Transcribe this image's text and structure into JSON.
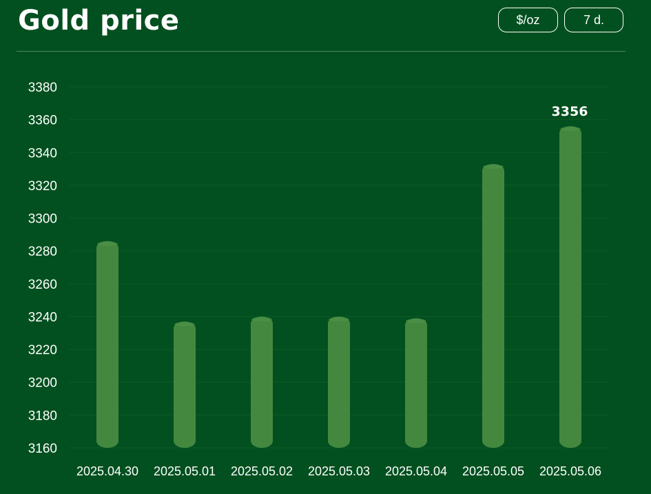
{
  "header": {
    "title": "Gold price",
    "unit_button": "$/oz",
    "range_button": "7 d."
  },
  "colors": {
    "background": "#02501f",
    "bar": "#448840",
    "bar_top": "#4f9449",
    "grid": "#0c5c26",
    "text": "#ffffff"
  },
  "chart_data": {
    "type": "bar",
    "categories": [
      "2025.04.30",
      "2025.05.01",
      "2025.05.02",
      "2025.05.03",
      "2025.05.04",
      "2025.05.05",
      "2025.05.06"
    ],
    "values": [
      3286,
      3237,
      3240,
      3240,
      3239,
      3333,
      3356
    ],
    "data_labels": [
      {
        "index": 6,
        "text": "3356"
      }
    ],
    "yticks": [
      3160,
      3180,
      3200,
      3220,
      3240,
      3260,
      3280,
      3300,
      3320,
      3340,
      3360,
      3380
    ],
    "ylim": [
      3160,
      3380
    ],
    "grid": true,
    "title": "",
    "xlabel": "",
    "ylabel": ""
  }
}
